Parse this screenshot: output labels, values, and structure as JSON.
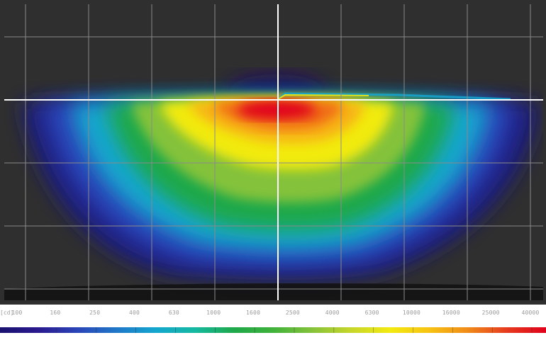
{
  "chart_data": {
    "type": "heatmap",
    "title": "",
    "unit_label": "[cd]",
    "background": "#2f2f2f",
    "grid": true,
    "grid_color": "#8a8a8a",
    "axis_line_color": "#ffffff",
    "colorbar": {
      "ticks": [
        "100",
        "160",
        "250",
        "400",
        "630",
        "1000",
        "1600",
        "2500",
        "4000",
        "6300",
        "10000",
        "16000",
        "25000",
        "40000"
      ],
      "colors": [
        "#1a1170",
        "#2a1a8f",
        "#2a45b8",
        "#1f78c8",
        "#14a6cf",
        "#14b9a0",
        "#1ea84a",
        "#3fb23a",
        "#84c23a",
        "#c6d62a",
        "#f2ea10",
        "#f7c312",
        "#f08a18",
        "#e63a1e",
        "#e0001c"
      ],
      "scale": "log"
    },
    "intensity_peak": 40000
  }
}
